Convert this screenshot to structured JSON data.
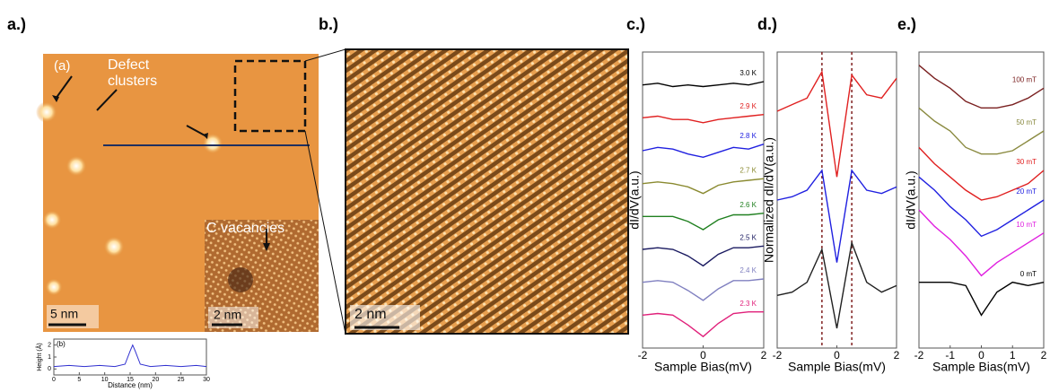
{
  "panel_labels": [
    "a.)",
    "b.)",
    "c.)",
    "d.)",
    "e.)"
  ],
  "image_a": {
    "label": "(a)",
    "annotations": [
      "Defect clusters",
      "C vacancies"
    ],
    "scale_bars": [
      "5 nm",
      "2 nm"
    ]
  },
  "image_b": {
    "scale_bar": "2 nm"
  },
  "chart_data": [
    {
      "type": "line",
      "label": "(b)",
      "xlabel": "Distance (nm)",
      "ylabel": "Height (Å)",
      "x": [
        0,
        3,
        6,
        9,
        12,
        14,
        15,
        15.5,
        16,
        17,
        19,
        22,
        25,
        28,
        30
      ],
      "series": [
        {
          "color": "#3030d0",
          "values": [
            0.2,
            0.3,
            0.2,
            0.3,
            0.2,
            0.4,
            1.5,
            2.0,
            1.5,
            0.4,
            0.2,
            0.3,
            0.2,
            0.3,
            0.2
          ]
        }
      ],
      "xlim": [
        0,
        30
      ],
      "xticks": [
        0,
        5,
        10,
        15,
        20,
        25,
        30
      ],
      "ylim": [
        -0.5,
        2.5
      ],
      "yticks": [
        0,
        1,
        2
      ]
    },
    {
      "type": "line",
      "xlabel": "Sample Bias(mV)",
      "ylabel": "dI/dV(a.u.)",
      "x": [
        -2,
        -1.5,
        -1,
        -0.5,
        0,
        0.5,
        1,
        1.5,
        2
      ],
      "xlim": [
        -2,
        2
      ],
      "xticks": [
        -2,
        0,
        2
      ],
      "ylim": [
        0,
        9
      ],
      "series": [
        {
          "name": "3.0 K",
          "color": "#000000",
          "values": [
            8,
            8.05,
            7.95,
            8,
            7.95,
            8,
            8.05,
            8,
            8.1
          ]
        },
        {
          "name": "2.9 K",
          "color": "#e02020",
          "values": [
            7,
            7.05,
            6.95,
            6.95,
            6.85,
            6.95,
            7,
            7.05,
            7.1
          ]
        },
        {
          "name": "2.8 K",
          "color": "#2020e0",
          "values": [
            6,
            6.1,
            6.05,
            5.9,
            5.8,
            5.95,
            6.1,
            6.05,
            6.2
          ]
        },
        {
          "name": "2.7 K",
          "color": "#8a8a30",
          "values": [
            5,
            5.05,
            5,
            4.9,
            4.7,
            4.95,
            5.05,
            5.1,
            5.15
          ]
        },
        {
          "name": "2.6 K",
          "color": "#208020",
          "values": [
            4,
            4,
            4,
            3.85,
            3.6,
            3.9,
            4.05,
            4.05,
            4.1
          ]
        },
        {
          "name": "2.5 K",
          "color": "#1a1a60",
          "values": [
            3,
            3.05,
            3,
            2.8,
            2.5,
            2.85,
            3.05,
            3.05,
            3.1
          ]
        },
        {
          "name": "2.4 K",
          "color": "#8080c0",
          "values": [
            2,
            2.05,
            2,
            1.75,
            1.45,
            1.8,
            2.05,
            2.05,
            2.1
          ]
        },
        {
          "name": "2.3 K",
          "color": "#e0207a",
          "values": [
            1,
            1.05,
            1,
            0.7,
            0.35,
            0.75,
            1.05,
            1.1,
            1.1
          ]
        }
      ]
    },
    {
      "type": "line",
      "xlabel": "Sample Bias(mV)",
      "ylabel": "Normalized dI/dV(a.u.)",
      "x": [
        -2,
        -1.5,
        -1,
        -0.5,
        0,
        0.5,
        1,
        1.5,
        2
      ],
      "xlim": [
        -2,
        2
      ],
      "xticks": [
        -2,
        0,
        2
      ],
      "ylim": [
        0,
        9
      ],
      "vlines": [
        -0.5,
        0.5
      ],
      "series": [
        {
          "color": "#e02020",
          "values": [
            7.2,
            7.4,
            7.6,
            8.4,
            5.2,
            8.3,
            7.7,
            7.6,
            8.2
          ]
        },
        {
          "color": "#2020e0",
          "values": [
            4.5,
            4.6,
            4.8,
            5.4,
            2.6,
            5.4,
            4.8,
            4.7,
            4.9
          ]
        },
        {
          "color": "#202020",
          "values": [
            1.6,
            1.7,
            2,
            3,
            0.6,
            3.2,
            2,
            1.7,
            1.9
          ]
        }
      ]
    },
    {
      "type": "line",
      "xlabel": "Sample Bias(mV)",
      "ylabel": "dI/dV(a.u.)",
      "x": [
        -2,
        -1.5,
        -1,
        -0.5,
        0,
        0.5,
        1,
        1.5,
        2
      ],
      "xlim": [
        -2,
        2
      ],
      "xticks": [
        -2,
        -1,
        0,
        1,
        2
      ],
      "ylim": [
        0,
        9
      ],
      "series": [
        {
          "name": "100 mT",
          "color": "#7a2020",
          "values": [
            8.6,
            8.2,
            7.9,
            7.5,
            7.3,
            7.3,
            7.4,
            7.6,
            7.9
          ]
        },
        {
          "name": "50 mT",
          "color": "#8a8a40",
          "values": [
            7.3,
            6.9,
            6.6,
            6.1,
            5.9,
            5.9,
            6.0,
            6.3,
            6.6
          ]
        },
        {
          "name": "30 mT",
          "color": "#e02020",
          "values": [
            6.1,
            5.6,
            5.2,
            4.8,
            4.5,
            4.6,
            4.8,
            5.0,
            5.4
          ]
        },
        {
          "name": "20 mT",
          "color": "#2020e0",
          "values": [
            5.2,
            4.8,
            4.3,
            3.9,
            3.4,
            3.6,
            3.9,
            4.2,
            4.5
          ]
        },
        {
          "name": "10 mT",
          "color": "#e020e0",
          "values": [
            4.2,
            3.7,
            3.3,
            2.8,
            2.2,
            2.6,
            2.9,
            3.2,
            3.5
          ]
        },
        {
          "name": "0 mT",
          "color": "#000000",
          "values": [
            2,
            2,
            2,
            1.9,
            1.0,
            1.7,
            2,
            1.9,
            2
          ]
        }
      ]
    }
  ]
}
